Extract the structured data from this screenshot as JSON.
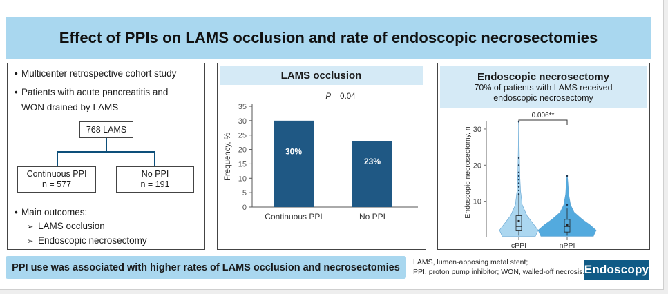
{
  "title": "Effect of PPIs on LAMS occlusion and rate of endoscopic necrosectomies",
  "study": {
    "bullets": [
      "Multicenter retrospective cohort study",
      "Patients with acute pancreatitis and",
      "WON drained by LAMS"
    ],
    "flow": {
      "root": "768 LAMS",
      "left_line1": "Continuous PPI",
      "left_line2": "n = 577",
      "right_line1": "No PPI",
      "right_line2": "n = 191"
    },
    "outcomes_label": "Main outcomes:",
    "outcomes": [
      "LAMS occlusion",
      "Endoscopic necrosectomy"
    ],
    "bullet_glyph": "•",
    "arrow_glyph": "➢"
  },
  "occlusion_panel": {
    "heading": "LAMS occlusion"
  },
  "necrosectomy_panel": {
    "heading": "Endoscopic necrosectomy",
    "subtitle_line1": "70% of patients with LAMS received",
    "subtitle_line2": "endoscopic necrosectomy"
  },
  "chart_data": [
    {
      "type": "bar",
      "annotation": "P = 0.04",
      "categories": [
        "Continuous PPI",
        "No PPI"
      ],
      "values": [
        30,
        23
      ],
      "value_labels": [
        "30%",
        "23%"
      ],
      "ylabel": "Frequency, %",
      "xlabel": "",
      "ylim": [
        0,
        35
      ],
      "yticks": [
        0,
        5,
        10,
        15,
        20,
        25,
        30,
        35
      ],
      "bar_color": "#1f5884",
      "grid": false
    },
    {
      "type": "violin",
      "annotation": "0.006**",
      "categories": [
        "cPPI",
        "nPPI"
      ],
      "ylabel": "Endoscopic necrosectomy, n",
      "xlabel": "",
      "ylim": [
        0,
        34
      ],
      "yticks": [
        10,
        20,
        30
      ],
      "colors": [
        "#a8d5f0",
        "#4aa6dd"
      ],
      "grid": false,
      "groups": [
        {
          "name": "cPPI",
          "box": {
            "q1": 2,
            "median": 3,
            "q3": 6,
            "mean": 4.5
          },
          "whisker_high": 12,
          "max": 32,
          "outliers": [
            12,
            13,
            14,
            15,
            16,
            17,
            18,
            20,
            22,
            32
          ]
        },
        {
          "name": "nPPI",
          "box": {
            "q1": 1.5,
            "median": 3,
            "q3": 5,
            "mean": 3.5
          },
          "whisker_high": 8,
          "max": 17,
          "outliers": [
            9,
            17
          ]
        }
      ]
    }
  ],
  "bottom_bar": "PPI use was associated with higher rates of LAMS occlusion and necrosectomies",
  "footnote": {
    "line1": "LAMS, lumen-apposing metal stent;",
    "line2": "PPI, proton pump inhibitor; WON, walled-off necrosis."
  },
  "logo": "Endoscopy"
}
